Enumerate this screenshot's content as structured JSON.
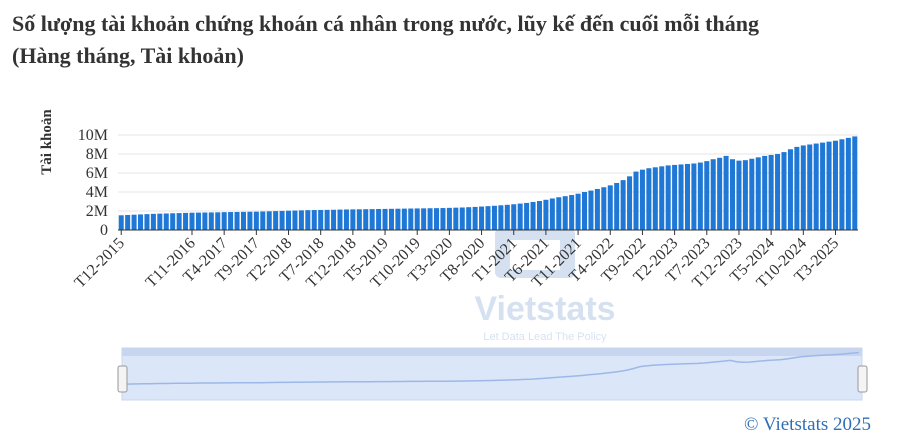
{
  "title_line1": "Số lượng tài khoản chứng khoán cá nhân trong nước, lũy kế đến cuối mỗi tháng",
  "title_line2": "(Hàng tháng, Tài khoản)",
  "copyright": "© Vietstats 2025",
  "watermark": {
    "brand": "Vietstats",
    "tagline": "Let Data Lead The Policy"
  },
  "colors": {
    "bar": "#1f77d6",
    "grid": "#e6e6e6",
    "navigator_fill": "#dbe6f9",
    "navigator_line": "#9db8e8"
  },
  "chart_data": {
    "type": "bar",
    "ylabel": "Tài khoản",
    "ylim": [
      0,
      10000000
    ],
    "yticks": [
      "0",
      "2M",
      "4M",
      "6M",
      "8M",
      "10M"
    ],
    "yticks_values": [
      0,
      2000000,
      4000000,
      6000000,
      8000000,
      10000000
    ],
    "x_tick_labels": [
      "T12-2015",
      "T11-2016",
      "T4-2017",
      "T9-2017",
      "T2-2018",
      "T7-2018",
      "T12-2018",
      "T5-2019",
      "T10-2019",
      "T3-2020",
      "T8-2020",
      "T1-2021",
      "T6-2021",
      "T11-2021",
      "T4-2022",
      "T9-2022",
      "T2-2023",
      "T7-2023",
      "T12-2023",
      "T5-2024",
      "T10-2024",
      "T3-2025"
    ],
    "categories": [
      "T12-2015",
      "T1-2016",
      "T2-2016",
      "T3-2016",
      "T4-2016",
      "T5-2016",
      "T6-2016",
      "T7-2016",
      "T8-2016",
      "T9-2016",
      "T10-2016",
      "T11-2016",
      "T12-2016",
      "T1-2017",
      "T2-2017",
      "T3-2017",
      "T4-2017",
      "T5-2017",
      "T6-2017",
      "T7-2017",
      "T8-2017",
      "T9-2017",
      "T10-2017",
      "T11-2017",
      "T12-2017",
      "T1-2018",
      "T2-2018",
      "T3-2018",
      "T4-2018",
      "T5-2018",
      "T6-2018",
      "T7-2018",
      "T8-2018",
      "T9-2018",
      "T10-2018",
      "T11-2018",
      "T12-2018",
      "T1-2019",
      "T2-2019",
      "T3-2019",
      "T4-2019",
      "T5-2019",
      "T6-2019",
      "T7-2019",
      "T8-2019",
      "T9-2019",
      "T10-2019",
      "T11-2019",
      "T12-2019",
      "T1-2020",
      "T2-2020",
      "T3-2020",
      "T4-2020",
      "T5-2020",
      "T6-2020",
      "T7-2020",
      "T8-2020",
      "T9-2020",
      "T10-2020",
      "T11-2020",
      "T12-2020",
      "T1-2021",
      "T2-2021",
      "T3-2021",
      "T4-2021",
      "T5-2021",
      "T6-2021",
      "T7-2021",
      "T8-2021",
      "T9-2021",
      "T10-2021",
      "T11-2021",
      "T12-2021",
      "T1-2022",
      "T2-2022",
      "T3-2022",
      "T4-2022",
      "T5-2022",
      "T6-2022",
      "T7-2022",
      "T8-2022",
      "T9-2022",
      "T10-2022",
      "T11-2022",
      "T12-2022",
      "T1-2023",
      "T2-2023",
      "T3-2023",
      "T4-2023",
      "T5-2023",
      "T6-2023",
      "T7-2023",
      "T8-2023",
      "T9-2023",
      "T10-2023",
      "T11-2023",
      "T12-2023",
      "T1-2024",
      "T2-2024",
      "T3-2024",
      "T4-2024",
      "T5-2024",
      "T6-2024",
      "T7-2024",
      "T8-2024",
      "T9-2024",
      "T10-2024",
      "T11-2024",
      "T12-2024",
      "T1-2025",
      "T2-2025",
      "T3-2025",
      "T4-2025",
      "T5-2025",
      "T6-2025"
    ],
    "values": [
      1550000,
      1580000,
      1610000,
      1640000,
      1670000,
      1700000,
      1720000,
      1740000,
      1760000,
      1780000,
      1800000,
      1820000,
      1830000,
      1840000,
      1850000,
      1860000,
      1880000,
      1890000,
      1900000,
      1910000,
      1920000,
      1930000,
      1950000,
      1970000,
      1990000,
      2010000,
      2030000,
      2050000,
      2070000,
      2090000,
      2100000,
      2110000,
      2120000,
      2130000,
      2150000,
      2160000,
      2170000,
      2180000,
      2190000,
      2200000,
      2210000,
      2220000,
      2230000,
      2240000,
      2250000,
      2260000,
      2270000,
      2280000,
      2290000,
      2300000,
      2310000,
      2330000,
      2350000,
      2370000,
      2400000,
      2430000,
      2470000,
      2510000,
      2550000,
      2600000,
      2650000,
      2710000,
      2780000,
      2850000,
      2950000,
      3050000,
      3180000,
      3320000,
      3450000,
      3560000,
      3680000,
      3820000,
      4000000,
      4150000,
      4320000,
      4500000,
      4700000,
      4950000,
      5250000,
      5650000,
      6150000,
      6350000,
      6500000,
      6600000,
      6700000,
      6800000,
      6850000,
      6900000,
      6950000,
      7000000,
      7100000,
      7250000,
      7450000,
      7600000,
      7800000,
      7450000,
      7300000,
      7350000,
      7500000,
      7650000,
      7800000,
      7900000,
      8000000,
      8200000,
      8500000,
      8750000,
      8900000,
      9000000,
      9100000,
      9200000,
      9300000,
      9400000,
      9550000,
      9700000,
      9850000
    ]
  }
}
